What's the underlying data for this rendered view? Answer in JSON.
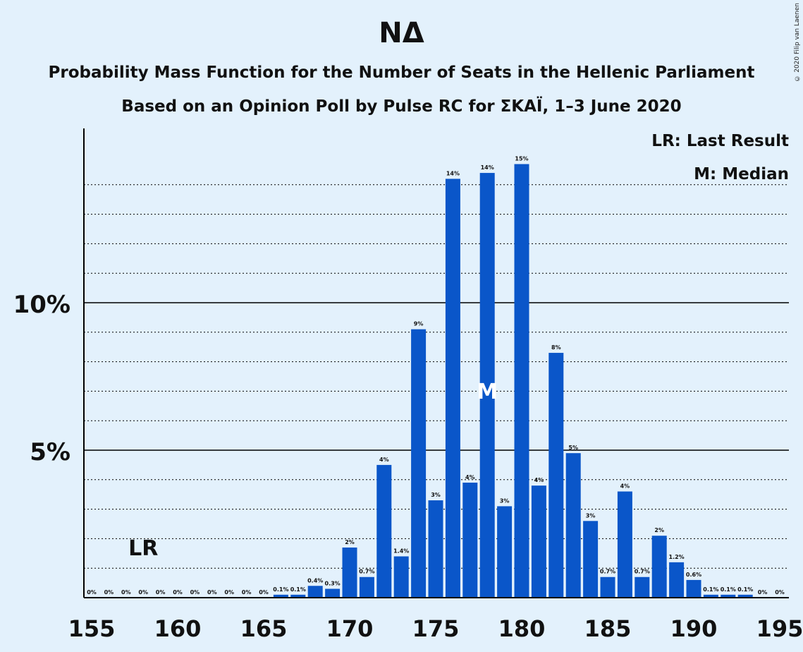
{
  "header": {
    "title": "NΔ",
    "subtitle1": "Probability Mass Function for the Number of Seats in the Hellenic Parliament",
    "subtitle2": "Based on an Opinion Poll by Pulse RC for ΣΚΑΪ, 1–3 June 2020",
    "copyright": "© 2020 Filip van Laenen"
  },
  "legend": {
    "last_result": "LR: Last Result",
    "median": "M: Median"
  },
  "colors": {
    "background": "#e3f1fc",
    "bar": "#0a56c9",
    "text": "#111111"
  },
  "chart_data": {
    "type": "bar",
    "title": "NΔ",
    "x": [
      155,
      156,
      157,
      158,
      159,
      160,
      161,
      162,
      163,
      164,
      165,
      166,
      167,
      168,
      169,
      170,
      171,
      172,
      173,
      174,
      175,
      176,
      177,
      178,
      179,
      180,
      181,
      182,
      183,
      184,
      185,
      186,
      187,
      188,
      189,
      190,
      191,
      192,
      193,
      194,
      195
    ],
    "values": [
      0,
      0,
      0,
      0,
      0,
      0,
      0,
      0,
      0,
      0,
      0,
      0.1,
      0.1,
      0.4,
      0.3,
      1.7,
      0.7,
      4.5,
      1.4,
      9.1,
      3.3,
      14.2,
      3.9,
      14.4,
      3.1,
      14.7,
      3.8,
      8.3,
      4.9,
      2.6,
      0.7,
      3.6,
      0.7,
      2.1,
      1.2,
      0.6,
      0.1,
      0.1,
      0.1,
      0,
      0
    ],
    "value_labels": [
      "0%",
      "0%",
      "0%",
      "0%",
      "0%",
      "0%",
      "0%",
      "0%",
      "0%",
      "0%",
      "0%",
      "0.1%",
      "0.1%",
      "0.4%",
      "0.3%",
      "2%",
      "0.7%",
      "4%",
      "1.4%",
      "9%",
      "3%",
      "14%",
      "4%",
      "14%",
      "3%",
      "15%",
      "4%",
      "8%",
      "5%",
      "3%",
      "0.7%",
      "4%",
      "0.7%",
      "2%",
      "1.2%",
      "0.6%",
      "0.1%",
      "0.1%",
      "0.1%",
      "0%",
      "0%"
    ],
    "x_ticks": [
      155,
      160,
      165,
      170,
      175,
      180,
      185,
      190,
      195
    ],
    "y_ticks": [
      {
        "value": 5,
        "label": "5%"
      },
      {
        "value": 10,
        "label": "10%"
      }
    ],
    "ylim": [
      0,
      16
    ],
    "grid": "dotted every 1%, solid at 5% and 10%",
    "last_result": {
      "x": 158,
      "label": "LR"
    },
    "median": {
      "x": 178,
      "label": "M"
    }
  }
}
